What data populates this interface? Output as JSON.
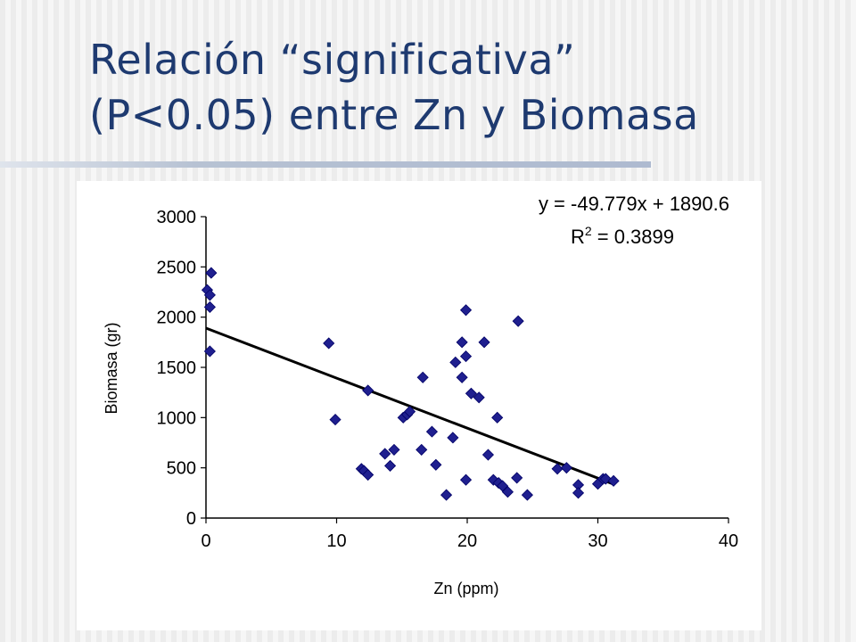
{
  "slide": {
    "title_line1": "Relación “significativa”",
    "title_line2": "(P<0.05) entre Zn y Biomasa"
  },
  "colors": {
    "title": "#1e3a70",
    "marker_fill": "#1f1f8f",
    "marker_stroke": "#000066",
    "trendline": "#000000"
  },
  "chart_data": {
    "type": "scatter",
    "xlabel": "Zn (ppm)",
    "ylabel": "Biomasa (gr)",
    "xlim": [
      0,
      40
    ],
    "ylim": [
      0,
      3000
    ],
    "xticks": [
      0,
      10,
      20,
      30,
      40
    ],
    "yticks": [
      0,
      500,
      1000,
      1500,
      2000,
      2500,
      3000
    ],
    "grid": false,
    "marker": "diamond",
    "points": [
      {
        "x": 0.1,
        "y": 2270
      },
      {
        "x": 0.3,
        "y": 2220
      },
      {
        "x": 0.4,
        "y": 2440
      },
      {
        "x": 0.3,
        "y": 2100
      },
      {
        "x": 0.3,
        "y": 1660
      },
      {
        "x": 9.4,
        "y": 1740
      },
      {
        "x": 9.9,
        "y": 980
      },
      {
        "x": 12.4,
        "y": 1270
      },
      {
        "x": 11.9,
        "y": 490
      },
      {
        "x": 12.1,
        "y": 470
      },
      {
        "x": 12.4,
        "y": 430
      },
      {
        "x": 13.7,
        "y": 640
      },
      {
        "x": 14.1,
        "y": 520
      },
      {
        "x": 14.4,
        "y": 680
      },
      {
        "x": 15.1,
        "y": 1000
      },
      {
        "x": 15.4,
        "y": 1030
      },
      {
        "x": 15.6,
        "y": 1060
      },
      {
        "x": 16.6,
        "y": 1400
      },
      {
        "x": 16.5,
        "y": 680
      },
      {
        "x": 17.3,
        "y": 860
      },
      {
        "x": 17.6,
        "y": 530
      },
      {
        "x": 18.4,
        "y": 230
      },
      {
        "x": 18.9,
        "y": 800
      },
      {
        "x": 19.1,
        "y": 1550
      },
      {
        "x": 19.6,
        "y": 1750
      },
      {
        "x": 19.6,
        "y": 1400
      },
      {
        "x": 19.9,
        "y": 2070
      },
      {
        "x": 19.9,
        "y": 1610
      },
      {
        "x": 20.3,
        "y": 1240
      },
      {
        "x": 20.9,
        "y": 1200
      },
      {
        "x": 19.9,
        "y": 380
      },
      {
        "x": 21.3,
        "y": 1750
      },
      {
        "x": 21.6,
        "y": 630
      },
      {
        "x": 22.3,
        "y": 1000
      },
      {
        "x": 22.0,
        "y": 380
      },
      {
        "x": 22.4,
        "y": 350
      },
      {
        "x": 22.7,
        "y": 320
      },
      {
        "x": 23.1,
        "y": 260
      },
      {
        "x": 23.9,
        "y": 1960
      },
      {
        "x": 23.8,
        "y": 400
      },
      {
        "x": 24.6,
        "y": 230
      },
      {
        "x": 26.9,
        "y": 490
      },
      {
        "x": 27.6,
        "y": 500
      },
      {
        "x": 28.5,
        "y": 330
      },
      {
        "x": 28.5,
        "y": 250
      },
      {
        "x": 30.0,
        "y": 340
      },
      {
        "x": 30.4,
        "y": 390
      },
      {
        "x": 30.6,
        "y": 390
      },
      {
        "x": 31.2,
        "y": 370
      }
    ],
    "trendline": {
      "slope": -49.779,
      "intercept": 1890.6,
      "x_from": 0,
      "x_to": 31.2,
      "equation": "y = -49.779x + 1890.6",
      "r2_label": "R",
      "r2_sup": "2",
      "r2_value": " = 0.3899"
    }
  }
}
